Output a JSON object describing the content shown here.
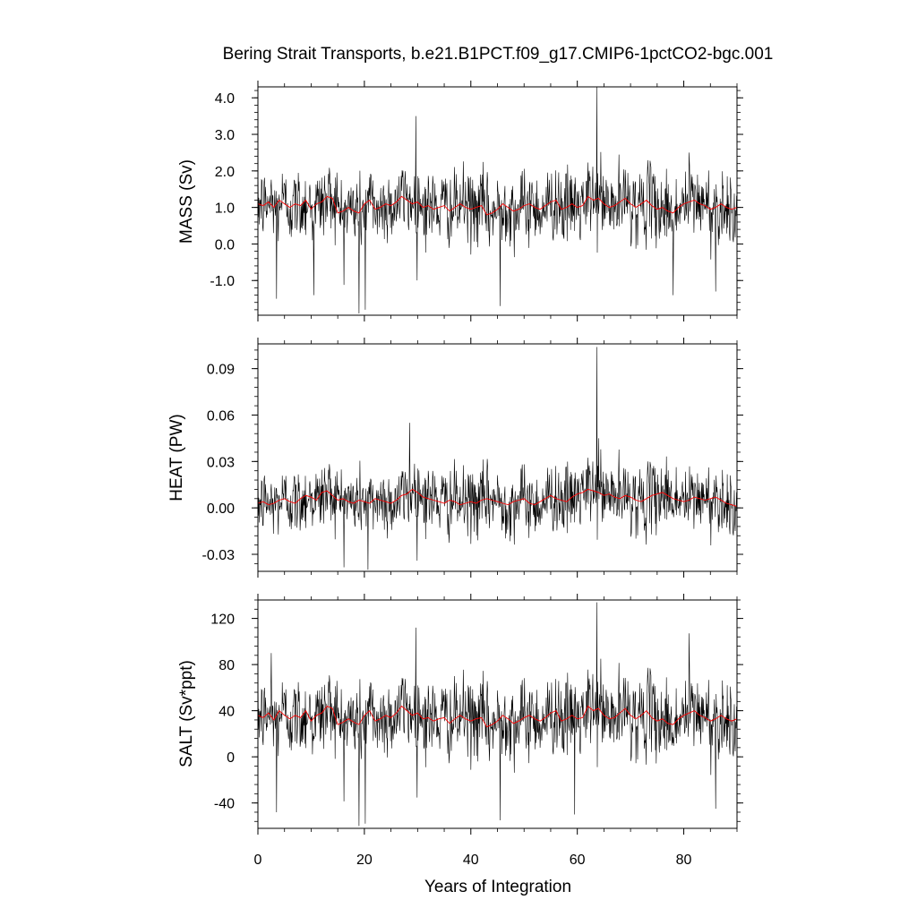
{
  "chart_data": [
    {
      "type": "line",
      "title": "Bering Strait Transports, b.e21.B1PCT.f09_g17.CMIP6-1pctCO2-bgc.001",
      "ylabel": "MASS (Sv)",
      "xlim": [
        0,
        90
      ],
      "ylim": [
        -1.95,
        4.3
      ],
      "yticks": [
        -1.0,
        0.0,
        1.0,
        2.0,
        3.0,
        4.0
      ],
      "ytick_labels": [
        "-1.0",
        "0.0",
        "1.0",
        "2.0",
        "3.0",
        "4.0"
      ],
      "noisy": {
        "mean": 1.0,
        "sd": 0.5,
        "spikes": [
          [
            63.7,
            4.3
          ],
          [
            29.7,
            3.5
          ],
          [
            19.0,
            -1.9
          ],
          [
            3.5,
            -1.5
          ],
          [
            20.2,
            -1.8
          ],
          [
            81.0,
            2.5
          ],
          [
            10.5,
            -1.4
          ],
          [
            86.0,
            -1.3
          ],
          [
            45.5,
            -1.7
          ],
          [
            78.0,
            -1.4
          ]
        ]
      },
      "series": [
        {
          "color": "#000000",
          "width": 0.6,
          "kind": "monthly"
        },
        {
          "color": "#ff0000",
          "width": 0.9,
          "kind": "annual",
          "values": [
            1.1,
            1.05,
            1.15,
            1.0,
            1.2,
            1.1,
            1.0,
            1.1,
            1.05,
            1.2,
            0.95,
            1.1,
            1.15,
            1.3,
            1.25,
            0.85,
            0.9,
            1.0,
            0.9,
            0.85,
            1.1,
            1.2,
            0.95,
            1.0,
            1.1,
            1.05,
            1.15,
            1.3,
            1.2,
            1.1,
            1.15,
            1.0,
            1.05,
            0.95,
            1.0,
            1.05,
            0.9,
            1.0,
            1.1,
            1.0,
            0.95,
            1.0,
            1.05,
            0.8,
            0.85,
            0.95,
            1.1,
            1.0,
            0.9,
            0.95,
            1.05,
            1.1,
            1.0,
            0.95,
            1.05,
            1.15,
            1.2,
            0.95,
            1.0,
            1.1,
            1.0,
            1.05,
            1.3,
            1.2,
            1.25,
            1.1,
            1.0,
            1.05,
            1.15,
            1.25,
            1.1,
            1.0,
            1.1,
            1.2,
            1.05,
            0.95,
            1.0,
            0.9,
            0.85,
            1.0,
            1.1,
            1.15,
            1.2,
            1.1,
            1.05,
            0.95,
            1.0,
            1.1,
            1.0,
            0.95,
            1.0
          ]
        }
      ]
    },
    {
      "type": "line",
      "ylabel": "HEAT (PW)",
      "xlim": [
        0,
        90
      ],
      "ylim": [
        -0.041,
        0.106
      ],
      "yticks": [
        -0.03,
        0.0,
        0.03,
        0.06,
        0.09
      ],
      "ytick_labels": [
        "-0.03",
        "0.00",
        "0.03",
        "0.06",
        "0.09"
      ],
      "noisy": {
        "mean": 0.005,
        "sd": 0.011,
        "spikes": [
          [
            63.7,
            0.104
          ],
          [
            28.5,
            0.055
          ],
          [
            20.7,
            -0.04
          ],
          [
            64.0,
            0.045
          ]
        ]
      },
      "series": [
        {
          "color": "#000000",
          "width": 0.6,
          "kind": "monthly"
        },
        {
          "color": "#ff0000",
          "width": 0.9,
          "kind": "annual",
          "values": [
            0.003,
            0.004,
            0.002,
            0.003,
            0.005,
            0.006,
            0.004,
            0.003,
            0.006,
            0.008,
            0.007,
            0.005,
            0.01,
            0.011,
            0.008,
            0.005,
            0.006,
            0.004,
            0.003,
            0.005,
            0.004,
            0.003,
            0.006,
            0.005,
            0.004,
            0.003,
            0.005,
            0.008,
            0.009,
            0.012,
            0.01,
            0.007,
            0.006,
            0.005,
            0.004,
            0.003,
            0.005,
            0.004,
            0.002,
            0.003,
            0.004,
            0.003,
            0.005,
            0.006,
            0.005,
            0.004,
            0.003,
            0.002,
            0.004,
            0.005,
            0.006,
            0.003,
            0.002,
            0.004,
            0.006,
            0.008,
            0.006,
            0.005,
            0.004,
            0.007,
            0.009,
            0.01,
            0.012,
            0.011,
            0.01,
            0.008,
            0.009,
            0.007,
            0.006,
            0.008,
            0.007,
            0.005,
            0.004,
            0.006,
            0.008,
            0.009,
            0.01,
            0.008,
            0.006,
            0.005,
            0.004,
            0.005,
            0.007,
            0.006,
            0.005,
            0.006,
            0.007,
            0.005,
            0.003,
            0.002,
            0.001
          ]
        }
      ]
    },
    {
      "type": "line",
      "ylabel": "SALT (Sv*ppt)",
      "xlabel": "Years of Integration",
      "xlim": [
        0,
        90
      ],
      "xticks": [
        0,
        20,
        40,
        60,
        80
      ],
      "xtick_labels": [
        "0",
        "20",
        "40",
        "60",
        "80"
      ],
      "ylim": [
        -62,
        136
      ],
      "yticks": [
        -40,
        0,
        40,
        80,
        120
      ],
      "ytick_labels": [
        "-40",
        "0",
        "40",
        "80",
        "120"
      ],
      "noisy": {
        "mean": 33,
        "sd": 17,
        "spikes": [
          [
            63.7,
            134
          ],
          [
            29.7,
            112
          ],
          [
            19.0,
            -60
          ],
          [
            3.5,
            -48
          ],
          [
            20.2,
            -58
          ],
          [
            81.0,
            107
          ],
          [
            45.5,
            -55
          ],
          [
            86.0,
            -45
          ],
          [
            59.5,
            -50
          ],
          [
            2.5,
            90
          ]
        ]
      },
      "series": [
        {
          "color": "#000000",
          "width": 0.6,
          "kind": "monthly"
        },
        {
          "color": "#ff0000",
          "width": 0.9,
          "kind": "annual",
          "values": [
            36,
            34,
            38,
            32,
            40,
            36,
            33,
            36,
            34,
            40,
            31,
            36,
            38,
            44,
            42,
            28,
            30,
            33,
            30,
            28,
            36,
            40,
            31,
            33,
            36,
            34,
            38,
            44,
            40,
            36,
            38,
            33,
            34,
            31,
            33,
            34,
            29,
            33,
            36,
            33,
            31,
            33,
            34,
            26,
            28,
            31,
            36,
            33,
            29,
            31,
            34,
            36,
            33,
            31,
            34,
            38,
            40,
            31,
            33,
            36,
            33,
            34,
            44,
            40,
            42,
            36,
            33,
            34,
            38,
            42,
            36,
            33,
            36,
            40,
            34,
            31,
            33,
            29,
            28,
            33,
            36,
            38,
            40,
            36,
            34,
            31,
            33,
            36,
            33,
            31,
            33
          ]
        }
      ]
    }
  ]
}
